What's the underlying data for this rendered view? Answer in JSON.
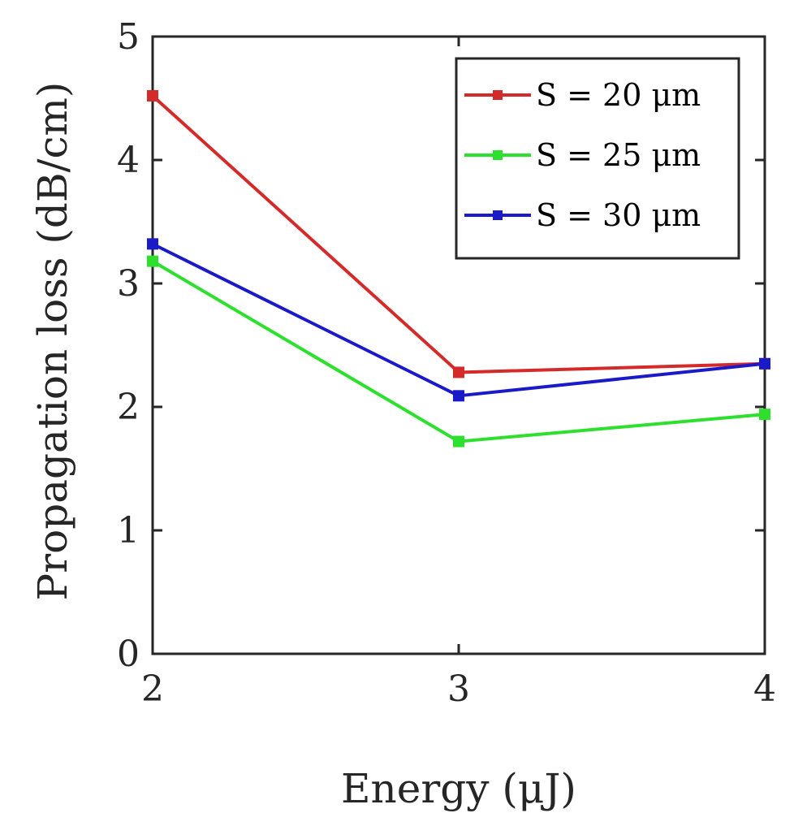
{
  "chart_data": {
    "type": "line",
    "title": "",
    "xlabel": "Energy  (μJ)",
    "ylabel": "Propagation loss  (dB/cm)",
    "x": [
      2,
      3,
      4
    ],
    "xlim": [
      2,
      4
    ],
    "ylim": [
      0,
      5
    ],
    "xticks": [
      "2",
      "3",
      "4"
    ],
    "yticks": [
      "0",
      "1",
      "2",
      "3",
      "4",
      "5"
    ],
    "grid": false,
    "legend_position": "top-right",
    "series": [
      {
        "name": "S = 20 μm",
        "values": [
          4.52,
          2.28,
          2.35
        ],
        "color": "#d42a2a",
        "marker": "square"
      },
      {
        "name": "S = 25 μm",
        "values": [
          3.18,
          1.72,
          1.94
        ],
        "color": "#2ee02e",
        "marker": "square"
      },
      {
        "name": "S = 30 μm",
        "values": [
          3.32,
          2.09,
          2.35
        ],
        "color": "#1a1ac8",
        "marker": "square"
      }
    ]
  }
}
